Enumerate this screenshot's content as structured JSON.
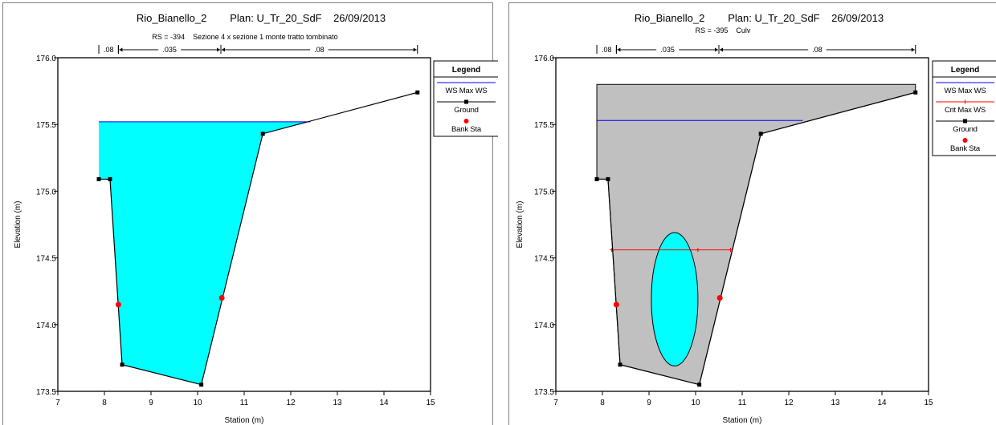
{
  "chart_data": [
    {
      "type": "line",
      "title": "Rio_Bianello_2        Plan: U_Tr_20_SdF    26/09/2013",
      "subtitle": "RS = -394    Sezione 4 x sezione 1 monte tratto tombinato",
      "xlabel": "Station (m)",
      "ylabel": "Elevation (m)",
      "xlim": [
        7,
        15
      ],
      "ylim": [
        173.5,
        176.0
      ],
      "xticks": [
        "7",
        "8",
        "9",
        "10",
        "11",
        "12",
        "13",
        "14",
        "15"
      ],
      "yticks": [
        "173.5",
        "174.0",
        "174.5",
        "175.0",
        "175.5",
        "176.0"
      ],
      "mannings": [
        {
          "label": ".08",
          "from": 7.88,
          "to": 8.3
        },
        {
          "label": ".035",
          "from": 8.3,
          "to": 10.5
        },
        {
          "label": ".08",
          "from": 10.5,
          "to": 14.72
        }
      ],
      "legend": {
        "title": "Legend",
        "entries": [
          {
            "label": "WS Max WS",
            "color": "#0000ff",
            "kind": "line"
          },
          {
            "label": "Ground",
            "color": "#000000",
            "kind": "line-square"
          },
          {
            "label": "Bank Sta",
            "color": "#ff0000",
            "kind": "dot"
          }
        ]
      },
      "ground": {
        "x": [
          7.88,
          8.12,
          8.38,
          10.08,
          11.4,
          14.72
        ],
        "y": [
          175.09,
          175.09,
          173.7,
          173.55,
          175.43,
          175.74
        ]
      },
      "ws": {
        "elevation": 175.52,
        "x_from": 7.88,
        "x_to": 12.42,
        "fill": "#00ffff",
        "line": "#0000ff"
      },
      "bank_sta": {
        "x": [
          8.3,
          10.52
        ],
        "y": [
          174.15,
          174.2
        ]
      }
    },
    {
      "type": "line",
      "title": "Rio_Bianello_2        Plan: U_Tr_20_SdF    26/09/2013",
      "subtitle": "RS = -395    Culv",
      "xlabel": "Station (m)",
      "ylabel": "Elevation (m)",
      "xlim": [
        7,
        15
      ],
      "ylim": [
        173.5,
        176.0
      ],
      "xticks": [
        "7",
        "8",
        "9",
        "10",
        "11",
        "12",
        "13",
        "14",
        "15"
      ],
      "yticks": [
        "173.5",
        "174.0",
        "174.5",
        "175.0",
        "175.5",
        "176.0"
      ],
      "mannings": [
        {
          "label": ".08",
          "from": 7.88,
          "to": 8.3
        },
        {
          "label": ".035",
          "from": 8.3,
          "to": 10.5
        },
        {
          "label": ".08",
          "from": 10.5,
          "to": 14.72
        }
      ],
      "legend": {
        "title": "Legend",
        "entries": [
          {
            "label": "WS Max WS",
            "color": "#0000ff",
            "kind": "line"
          },
          {
            "label": "Crit Max WS",
            "color": "#ff0000",
            "kind": "line-plus"
          },
          {
            "label": "Ground",
            "color": "#000000",
            "kind": "line-square"
          },
          {
            "label": "Bank Sta",
            "color": "#ff0000",
            "kind": "dot"
          }
        ]
      },
      "ground": {
        "x": [
          7.88,
          8.12,
          8.38,
          10.08,
          11.4,
          14.72
        ],
        "y": [
          175.09,
          175.09,
          173.7,
          173.55,
          175.43,
          175.74
        ]
      },
      "deck": {
        "top": 175.8,
        "x_from": 7.88,
        "x_to": 14.72,
        "fill": "#c0c0c0"
      },
      "ws": {
        "elevation": 175.53,
        "x_from": 7.88,
        "x_to": 12.3,
        "line": "#0000ff"
      },
      "crit": {
        "elevation": 174.56,
        "x": [
          8.2,
          10.05,
          10.75
        ],
        "line": "#ff0000"
      },
      "culvert_opening": {
        "cx": 9.55,
        "cy": 174.19,
        "rx": 0.5,
        "ry": 0.5,
        "fill": "#00ffff"
      },
      "bank_sta": {
        "x": [
          8.3,
          10.52
        ],
        "y": [
          174.15,
          174.2
        ]
      }
    }
  ]
}
